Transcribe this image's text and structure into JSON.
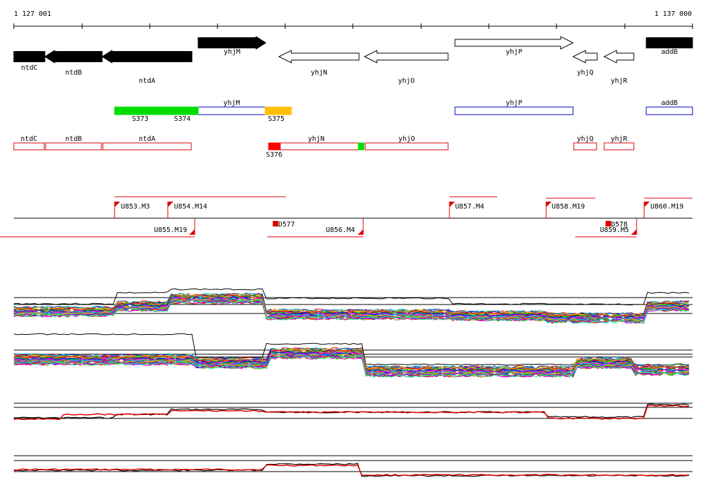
{
  "ruler": {
    "start_label": "1 127 001",
    "end_label": "1 137 000"
  },
  "genes_top": [
    {
      "name": "ntdC",
      "strand": "-",
      "filled": true
    },
    {
      "name": "ntdB",
      "strand": "-",
      "filled": true
    },
    {
      "name": "ntdA",
      "strand": "-",
      "filled": true
    },
    {
      "name": "yhjM",
      "strand": "+",
      "filled": true
    },
    {
      "name": "yhjN",
      "strand": "-",
      "filled": false
    },
    {
      "name": "yhjO",
      "strand": "-",
      "filled": false
    },
    {
      "name": "yhjP",
      "strand": "+",
      "filled": false
    },
    {
      "name": "yhjQ",
      "strand": "-",
      "filled": false
    },
    {
      "name": "yhjR",
      "strand": "-",
      "filled": false
    },
    {
      "name": "addB",
      "strand": "+",
      "filled": true
    }
  ],
  "plus_track": {
    "genes": [
      "yhjM",
      "yhjP",
      "addB"
    ],
    "segments": [
      {
        "label": "S373",
        "color": "#00dd00"
      },
      {
        "label": "S374",
        "color": "#00dd00"
      },
      {
        "label": "S375",
        "color": "#ffc000"
      }
    ]
  },
  "minus_track": {
    "genes": [
      "ntdC",
      "ntdB",
      "ntdA",
      "yhjN",
      "yhjO",
      "yhjQ",
      "yhjR"
    ],
    "segments": [
      {
        "label": "S376",
        "color": "#ff0000"
      },
      {
        "label": "",
        "color": "#00dd00"
      }
    ]
  },
  "upstream_plus": [
    "U853.M3",
    "U854.M14",
    "U857.M4",
    "U858.M19",
    "U860.M19"
  ],
  "upstream_minus": [
    "U855.M19",
    "U856.M4",
    "U859.M5"
  ],
  "markers": [
    "D577",
    "D578"
  ],
  "colors": {
    "gene_outline_minus": "#dd0000",
    "gene_outline_plus": "#0000cc",
    "signal_red": "#dd0000",
    "signal_black": "#000000"
  }
}
